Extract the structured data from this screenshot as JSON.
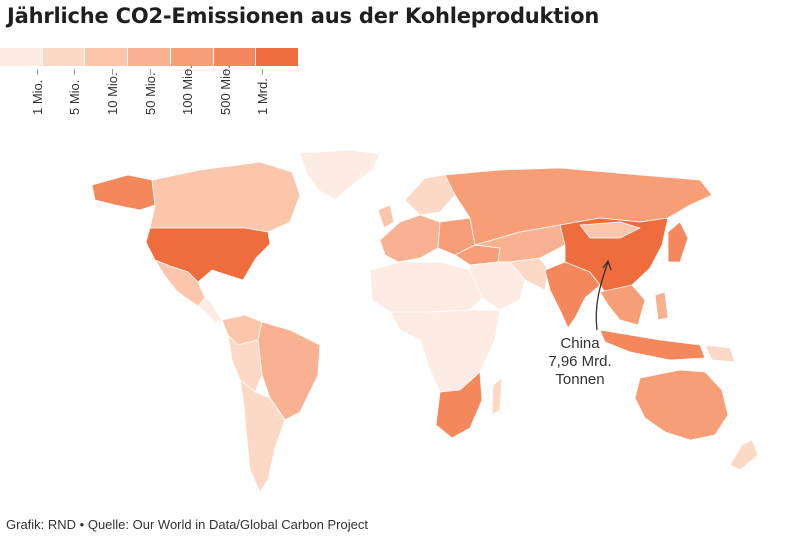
{
  "title": "Jährliche CO2-Emissionen aus der Kohleproduktion",
  "legend": {
    "colors": [
      "#fdece3",
      "#fcd9c6",
      "#fbc6ab",
      "#f9b291",
      "#f79e77",
      "#f4885c",
      "#ef6c3c"
    ],
    "ticks": [
      "1 Mio.",
      "5 Mio.",
      "10 Mio.",
      "50 Mio.",
      "100 Mio.",
      "500 Mio.",
      "1 Mrd."
    ]
  },
  "annotation": {
    "line1": "China",
    "line2": "7,96 Mrd.",
    "line3": "Tonnen"
  },
  "footer": "Grafik: RND • Quelle: Our World in Data/Global Carbon Project"
}
